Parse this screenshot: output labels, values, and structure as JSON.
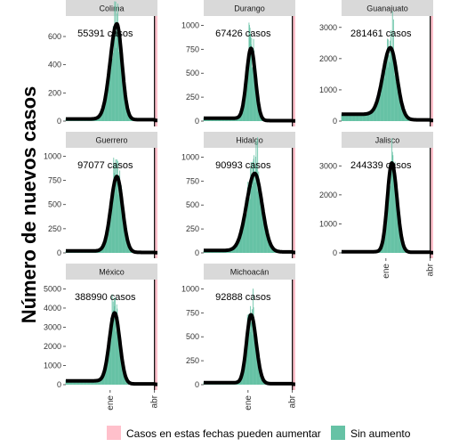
{
  "chart_data": {
    "type": "bar",
    "layout": "faceted small multiples (3 columns), daily new-case bars with smoothed trend line",
    "ylabel": "Número de nuevos casos",
    "xlabel": "",
    "x_tick_labels": [
      "ene",
      "abr"
    ],
    "grid": false,
    "legend_position": "bottom",
    "legend": [
      {
        "label": "Casos en estas fechas pueden aumentar",
        "color": "#FFC0CB"
      },
      {
        "label": "Sin aumento",
        "color": "#66C2A5"
      }
    ],
    "colors": {
      "bars": "#66C2A5",
      "trend": "#000000",
      "recent_band": "#FFC0CB",
      "strip": "#D9D9D9"
    },
    "x_range_months": [
      0,
      6.2
    ],
    "x_ticks_months": {
      "ene": 3.0,
      "abr": 6.0
    },
    "recent_band_months": [
      6.0,
      6.2
    ],
    "facets": [
      {
        "name": "Colima",
        "total_label": "55391 casos",
        "yticks": [
          0,
          200,
          400,
          600
        ],
        "ymax": 720,
        "peak_month": 3.45,
        "peak_value": 690,
        "width_left": 0.45,
        "width_right": 0.35,
        "baseline": 15,
        "tail": 10
      },
      {
        "name": "Durango",
        "total_label": "67426 casos",
        "yticks": [
          0,
          250,
          500,
          750,
          1000
        ],
        "ymax": 1060,
        "peak_month": 3.2,
        "peak_value": 760,
        "width_left": 0.3,
        "width_right": 0.3,
        "baseline": 30,
        "tail": 5
      },
      {
        "name": "Guanajuato",
        "total_label": "281461 casos",
        "yticks": [
          0,
          1000,
          2000,
          3000
        ],
        "ymax": 3250,
        "peak_month": 3.3,
        "peak_value": 2350,
        "width_left": 0.5,
        "width_right": 0.45,
        "baseline": 220,
        "tail": 40
      },
      {
        "name": "Guerrero",
        "total_label": "97077 casos",
        "yticks": [
          0,
          250,
          500,
          750,
          1000
        ],
        "ymax": 1050,
        "peak_month": 3.45,
        "peak_value": 790,
        "width_left": 0.4,
        "width_right": 0.38,
        "baseline": 20,
        "tail": 5
      },
      {
        "name": "Hidalgo",
        "total_label": "90993 casos",
        "yticks": [
          0,
          250,
          500,
          750,
          1000
        ],
        "ymax": 1060,
        "peak_month": 3.45,
        "peak_value": 830,
        "width_left": 0.55,
        "width_right": 0.5,
        "baseline": 25,
        "tail": 10
      },
      {
        "name": "Jalisco",
        "total_label": "244339 casos",
        "yticks": [
          0,
          1000,
          2000,
          3000
        ],
        "ymax": 3500,
        "peak_month": 3.4,
        "peak_value": 3100,
        "width_left": 0.3,
        "width_right": 0.35,
        "baseline": 40,
        "tail": 20
      },
      {
        "name": "México",
        "total_label": "388990 casos",
        "yticks": [
          0,
          1000,
          2000,
          3000,
          4000,
          5000
        ],
        "ymax": 5300,
        "peak_month": 3.3,
        "peak_value": 3750,
        "width_left": 0.35,
        "width_right": 0.35,
        "baseline": 200,
        "tail": 40
      },
      {
        "name": "Michoacán",
        "total_label": "92888 casos",
        "yticks": [
          0,
          250,
          500,
          750,
          1000
        ],
        "ymax": 1060,
        "peak_month": 3.2,
        "peak_value": 730,
        "width_left": 0.3,
        "width_right": 0.35,
        "baseline": 20,
        "tail": 10
      }
    ]
  }
}
